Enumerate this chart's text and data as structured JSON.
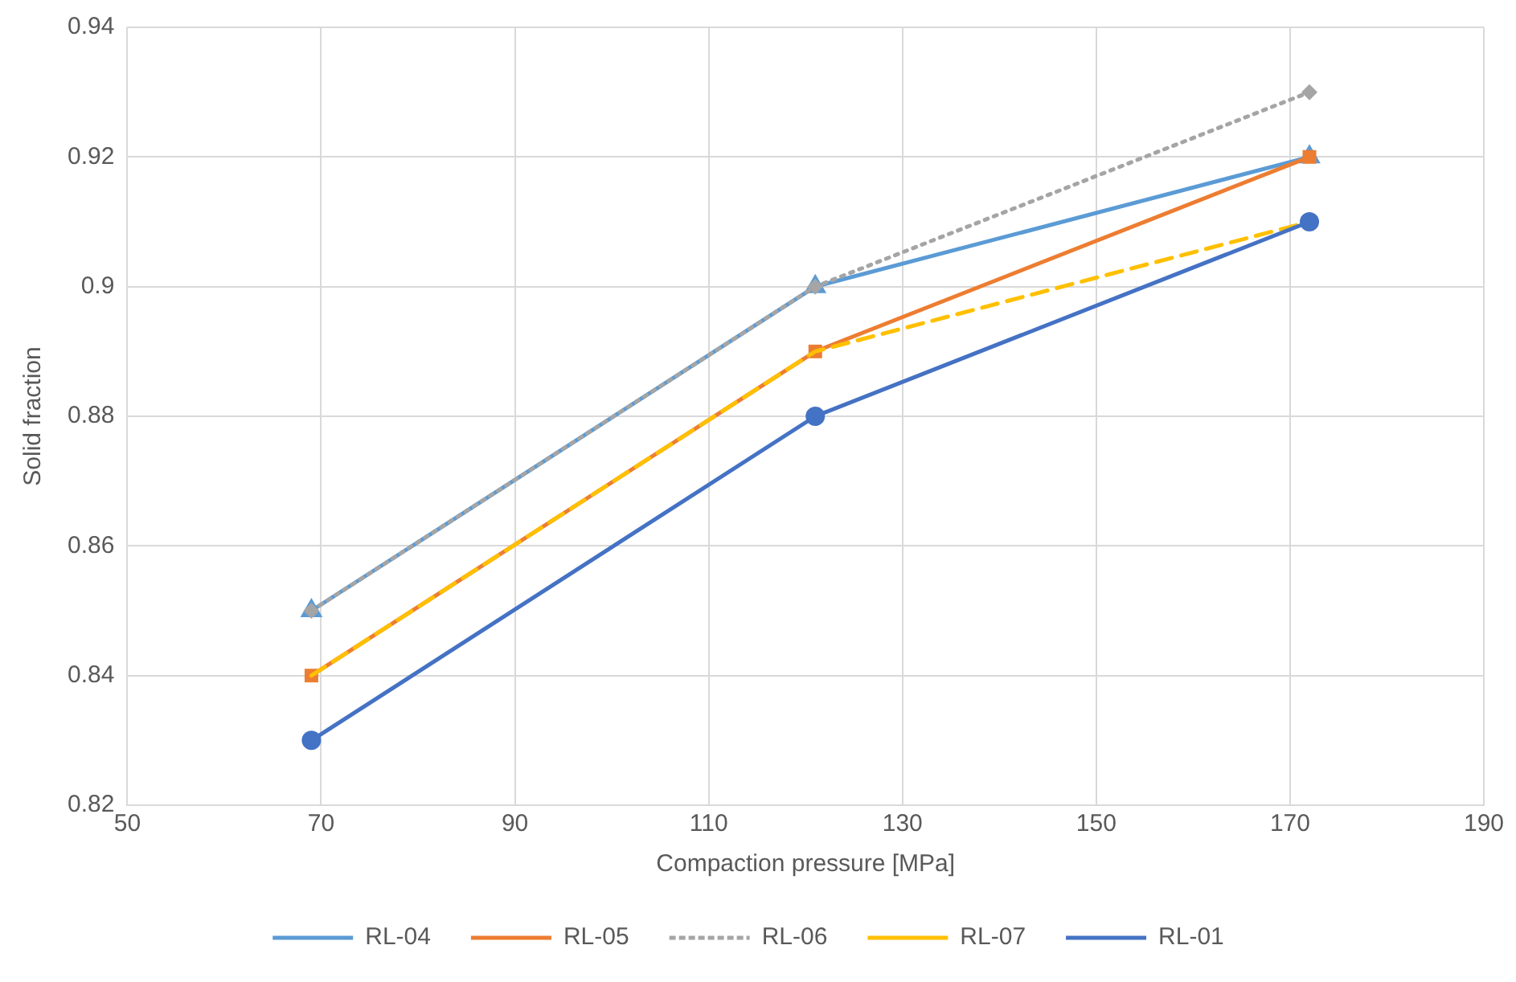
{
  "chart_data": {
    "type": "line",
    "xlabel": "Compaction pressure [MPa]",
    "ylabel": "Solid fraction",
    "x": [
      69,
      121,
      172
    ],
    "xlim": [
      50,
      190
    ],
    "xticks": [
      50,
      70,
      90,
      110,
      130,
      150,
      170,
      190
    ],
    "ylim": [
      0.82,
      0.94
    ],
    "yticks": [
      0.82,
      0.84,
      0.86,
      0.88,
      0.9,
      0.92,
      0.94
    ],
    "grid": true,
    "legend": "bottom",
    "series": [
      {
        "name": "RL-04",
        "color": "#5b9bd5",
        "values": [
          0.85,
          0.9,
          0.92
        ],
        "marker": "triangle",
        "line_style": "solid"
      },
      {
        "name": "RL-05",
        "color": "#ed7d31",
        "values": [
          0.84,
          0.89,
          0.92
        ],
        "marker": "square",
        "line_style": "solid"
      },
      {
        "name": "RL-06",
        "color": "#a5a5a5",
        "values": [
          0.85,
          0.9,
          0.93
        ],
        "marker": "diamond",
        "line_style": "dotted"
      },
      {
        "name": "RL-07",
        "color": "#ffc000",
        "values": [
          0.84,
          0.89,
          0.91
        ],
        "marker": "none",
        "line_style": "dashed"
      },
      {
        "name": "RL-01",
        "color": "#4472c4",
        "values": [
          0.83,
          0.88,
          0.91
        ],
        "marker": "circle",
        "line_style": "solid"
      }
    ]
  }
}
